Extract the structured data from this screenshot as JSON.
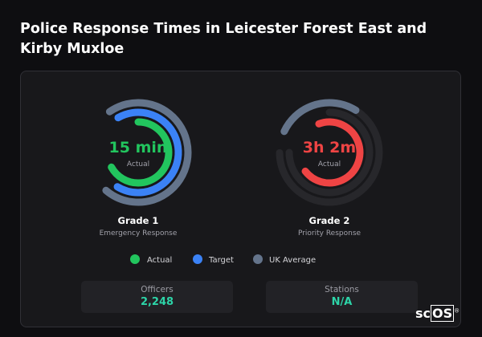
{
  "header": {
    "title": "Police Response Times in Leicester Forest East and Kirby Muxloe"
  },
  "gauges": [
    {
      "value": "15 min",
      "caption": "Actual",
      "grade": "Grade 1",
      "subtitle": "Emergency Response"
    },
    {
      "value": "3h 2m",
      "caption": "Actual",
      "grade": "Grade 2",
      "subtitle": "Priority Response"
    }
  ],
  "legend": [
    "Actual",
    "Target",
    "UK Average"
  ],
  "stats": [
    {
      "label": "Officers",
      "value": "2,248"
    },
    {
      "label": "Stations",
      "value": "N/A"
    }
  ],
  "logo": {
    "prefix": "sc",
    "boxed": "OS",
    "mark": "®"
  }
}
